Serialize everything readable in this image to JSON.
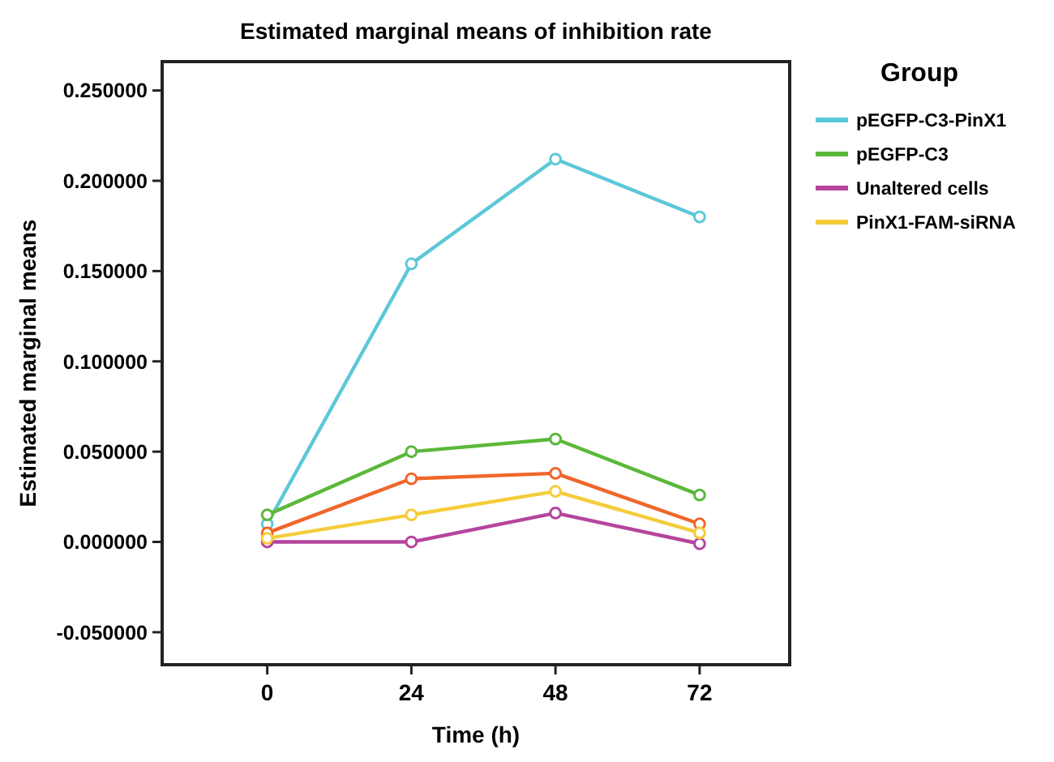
{
  "chart_data": {
    "type": "line",
    "title": "Estimated marginal means of inhibition rate",
    "xlabel": "Time (h)",
    "ylabel": "Estimated marginal means",
    "legend_title": "Group",
    "legend": "right",
    "marker": "circle",
    "grid": false,
    "x": [
      0,
      24,
      48,
      72
    ],
    "xlim": [
      -17.5,
      87
    ],
    "xticks": [
      0,
      24,
      48,
      72
    ],
    "ylim": [
      -0.068,
      0.266
    ],
    "yticks": [
      {
        "value": -0.05,
        "label": "-0.050000"
      },
      {
        "value": 0,
        "label": "0.000000"
      },
      {
        "value": 0.05,
        "label": "0.050000"
      },
      {
        "value": 0.1,
        "label": "0.100000"
      },
      {
        "value": 0.15,
        "label": "0.150000"
      },
      {
        "value": 0.2,
        "label": "0.200000"
      },
      {
        "value": 0.25,
        "label": "0.250000"
      }
    ],
    "series": [
      {
        "name": "pEGFP-C3-PinX1",
        "color": "#5bc8d8",
        "values": [
          0.01,
          0.154,
          0.212,
          0.18
        ]
      },
      {
        "name": "pEGFP-C3",
        "color": "#5cb83a",
        "values": [
          0.015,
          0.05,
          0.057,
          0.026
        ]
      },
      {
        "color": "#f0662a",
        "values": [
          0.005,
          0.035,
          0.038,
          0.01
        ]
      },
      {
        "name": "Unaltered cells",
        "color": "#b5449e",
        "values": [
          0,
          0,
          0.016,
          -0.001
        ]
      },
      {
        "name": "PinX1-FAM-siRNA",
        "color": "#f5cc3a",
        "values": [
          0.002,
          0.015,
          0.028,
          0.005
        ]
      }
    ]
  }
}
